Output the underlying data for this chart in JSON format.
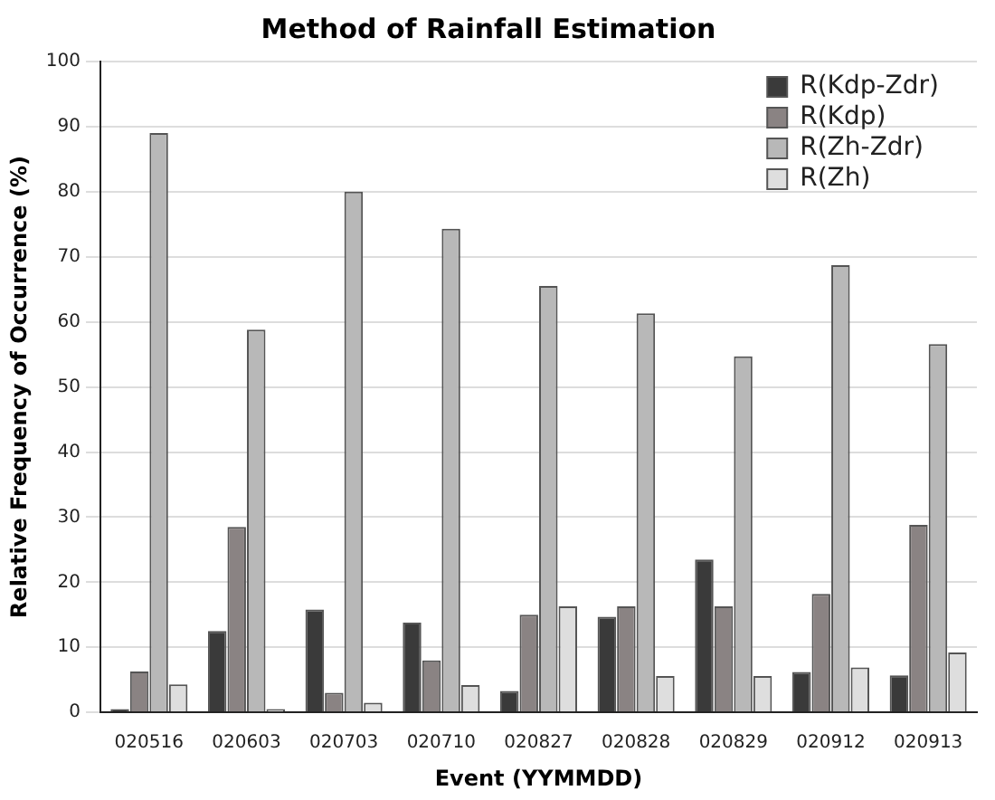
{
  "chart_data": {
    "type": "bar",
    "title": "Method of Rainfall Estimation",
    "xlabel": "Event (YYMMDD)",
    "ylabel": "Relative Frequency of Occurrence (%)",
    "categories": [
      "020516",
      "020603",
      "020703",
      "020710",
      "020827",
      "020828",
      "020829",
      "020912",
      "020913"
    ],
    "series": [
      {
        "name": "R(Kdp-Zdr)",
        "color": "#3a3a3a",
        "values": [
          0.5,
          12.5,
          15.8,
          13.8,
          3.3,
          14.7,
          23.5,
          6.2,
          5.7
        ]
      },
      {
        "name": "R(Kdp)",
        "color": "#8a8383",
        "values": [
          6.3,
          28.5,
          3,
          8,
          15,
          16.3,
          16.3,
          18.2,
          28.8
        ]
      },
      {
        "name": "R(Zh-Zdr)",
        "color": "#b8b8b8",
        "values": [
          89,
          58.8,
          80,
          74.3,
          65.5,
          61.3,
          54.7,
          68.7,
          56.6
        ]
      },
      {
        "name": "R(Zh)",
        "color": "#dedede",
        "values": [
          4.3,
          0.5,
          1.5,
          4.2,
          16.3,
          5.6,
          5.6,
          6.9,
          9.2
        ]
      }
    ],
    "ylim": [
      0,
      100
    ],
    "yticks": [
      0,
      10,
      20,
      30,
      40,
      50,
      60,
      70,
      80,
      90,
      100
    ],
    "grid": "y",
    "legend": "top right"
  }
}
